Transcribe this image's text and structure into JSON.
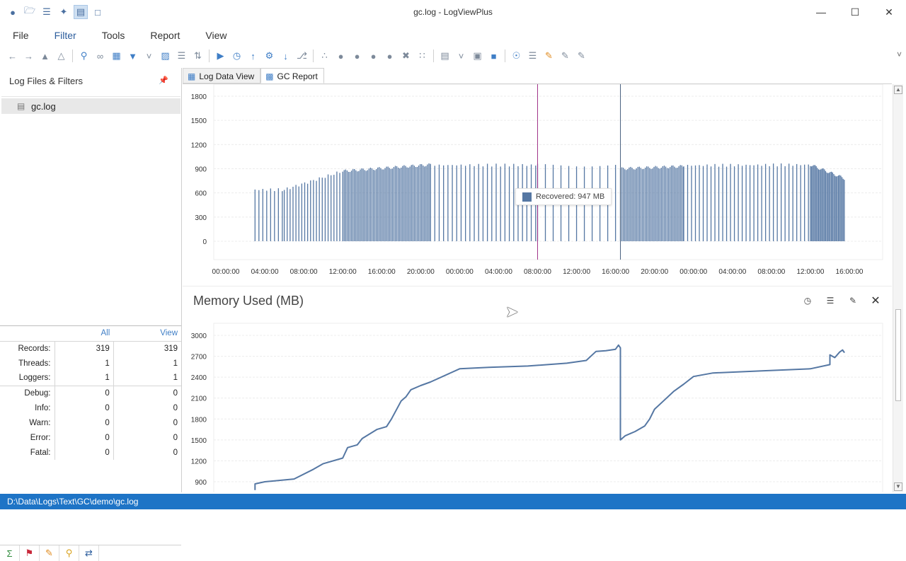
{
  "window": {
    "title": "gc.log - LogViewPlus"
  },
  "quick_access": [
    "logo-icon",
    "open-folder-icon",
    "layers-icon",
    "tools-icon",
    "view-icon",
    "doc-icon"
  ],
  "menu": [
    {
      "label": "File"
    },
    {
      "label": "Filter"
    },
    {
      "label": "Tools"
    },
    {
      "label": "Report"
    },
    {
      "label": "View"
    }
  ],
  "left_panel": {
    "title": "Log Files & Filters",
    "files": [
      {
        "name": "gc.log"
      }
    ]
  },
  "stats": {
    "columns": [
      "All",
      "View"
    ],
    "rows": [
      {
        "label": "Records:",
        "all": "319",
        "view": "319"
      },
      {
        "label": "Threads:",
        "all": "1",
        "view": "1"
      },
      {
        "label": "Loggers:",
        "all": "1",
        "view": "1"
      },
      {
        "label": "Debug:",
        "all": "0",
        "view": "0"
      },
      {
        "label": "Info:",
        "all": "0",
        "view": "0"
      },
      {
        "label": "Warn:",
        "all": "0",
        "view": "0"
      },
      {
        "label": "Error:",
        "all": "0",
        "view": "0"
      },
      {
        "label": "Fatal:",
        "all": "0",
        "view": "0"
      }
    ]
  },
  "tabs": [
    {
      "label": "Log Data View",
      "active": false
    },
    {
      "label": "GC Report",
      "active": true
    }
  ],
  "tooltip": {
    "text": "Recovered: 947 MB"
  },
  "memory_chart": {
    "title": "Memory Used (MB)"
  },
  "statusbar": {
    "path": "D:\\Data\\Logs\\Text\\GC\\demo\\gc.log"
  },
  "colors": {
    "series": "#5577a3",
    "statusbar": "#1e74c6",
    "accent": "#3f7ec6"
  },
  "chart_data": [
    {
      "type": "bar",
      "title": "",
      "series": [
        {
          "name": "Recovered",
          "unit": "MB"
        }
      ],
      "yticks": [
        0,
        300,
        600,
        900,
        1200,
        1500,
        1800
      ],
      "ylim": [
        0,
        1800
      ],
      "xticks": [
        "00:00:00",
        "04:00:00",
        "08:00:00",
        "12:00:00",
        "16:00:00",
        "20:00:00",
        "00:00:00",
        "04:00:00",
        "08:00:00",
        "12:00:00",
        "16:00:00",
        "20:00:00",
        "00:00:00",
        "04:00:00",
        "08:00:00",
        "12:00:00",
        "16:00:00"
      ],
      "x_start_hours": 3.0,
      "x_end_hours": 63.5,
      "markers": [
        {
          "x_hours": 32.0
        },
        {
          "x_hours": 40.5
        }
      ],
      "highlight": {
        "label": "Recovered: 947 MB",
        "value": 947
      },
      "segments": [
        {
          "from_hours": 3.0,
          "to_hours": 6.0,
          "start_value": 640,
          "end_value": 640,
          "spacing_hours": 0.4
        },
        {
          "from_hours": 6.0,
          "to_hours": 12.0,
          "start_value": 640,
          "end_value": 870,
          "spacing_hours": 0.3
        },
        {
          "from_hours": 12.0,
          "to_hours": 21.0,
          "start_value": 870,
          "end_value": 950,
          "spacing_hours": 0.15
        },
        {
          "from_hours": 21.0,
          "to_hours": 32.0,
          "start_value": 945,
          "end_value": 945,
          "spacing_hours": 0.45
        },
        {
          "from_hours": 32.0,
          "to_hours": 40.5,
          "start_value": 945,
          "end_value": 945,
          "spacing_hours": 0.8
        },
        {
          "from_hours": 40.5,
          "to_hours": 47.0,
          "start_value": 900,
          "end_value": 930,
          "spacing_hours": 0.15
        },
        {
          "from_hours": 47.0,
          "to_hours": 60.0,
          "start_value": 940,
          "end_value": 950,
          "spacing_hours": 0.4
        },
        {
          "from_hours": 60.0,
          "to_hours": 63.5,
          "start_value": 950,
          "end_value": 780,
          "spacing_hours": 0.12
        }
      ]
    },
    {
      "type": "line",
      "title": "Memory Used (MB)",
      "yticks": [
        900,
        1200,
        1500,
        1800,
        2100,
        2400,
        2700,
        3000
      ],
      "ylim": [
        800,
        3000
      ],
      "x_hours": [
        3.0,
        3.0,
        4.0,
        7.0,
        9.0,
        10.0,
        12.0,
        12.5,
        13.5,
        14.0,
        15.5,
        16.5,
        17.0,
        18.0,
        18.5,
        19.0,
        20.0,
        21.0,
        24.0,
        27.0,
        31.0,
        35.0,
        37.0,
        38.0,
        39.0,
        40.0,
        40.3,
        40.5,
        40.5,
        41.0,
        42.0,
        43.0,
        43.5,
        44.0,
        45.0,
        46.0,
        47.0,
        48.0,
        50.0,
        55.0,
        60.0,
        62.0,
        62.0,
        62.5,
        63.0,
        63.3,
        63.5
      ],
      "values": [
        780,
        870,
        900,
        940,
        1080,
        1160,
        1240,
        1390,
        1430,
        1520,
        1650,
        1690,
        1800,
        2060,
        2120,
        2220,
        2280,
        2330,
        2520,
        2540,
        2560,
        2600,
        2640,
        2770,
        2780,
        2800,
        2860,
        2820,
        1500,
        1560,
        1620,
        1700,
        1800,
        1940,
        2070,
        2200,
        2300,
        2410,
        2460,
        2490,
        2520,
        2580,
        2720,
        2680,
        2760,
        2790,
        2750
      ]
    }
  ]
}
